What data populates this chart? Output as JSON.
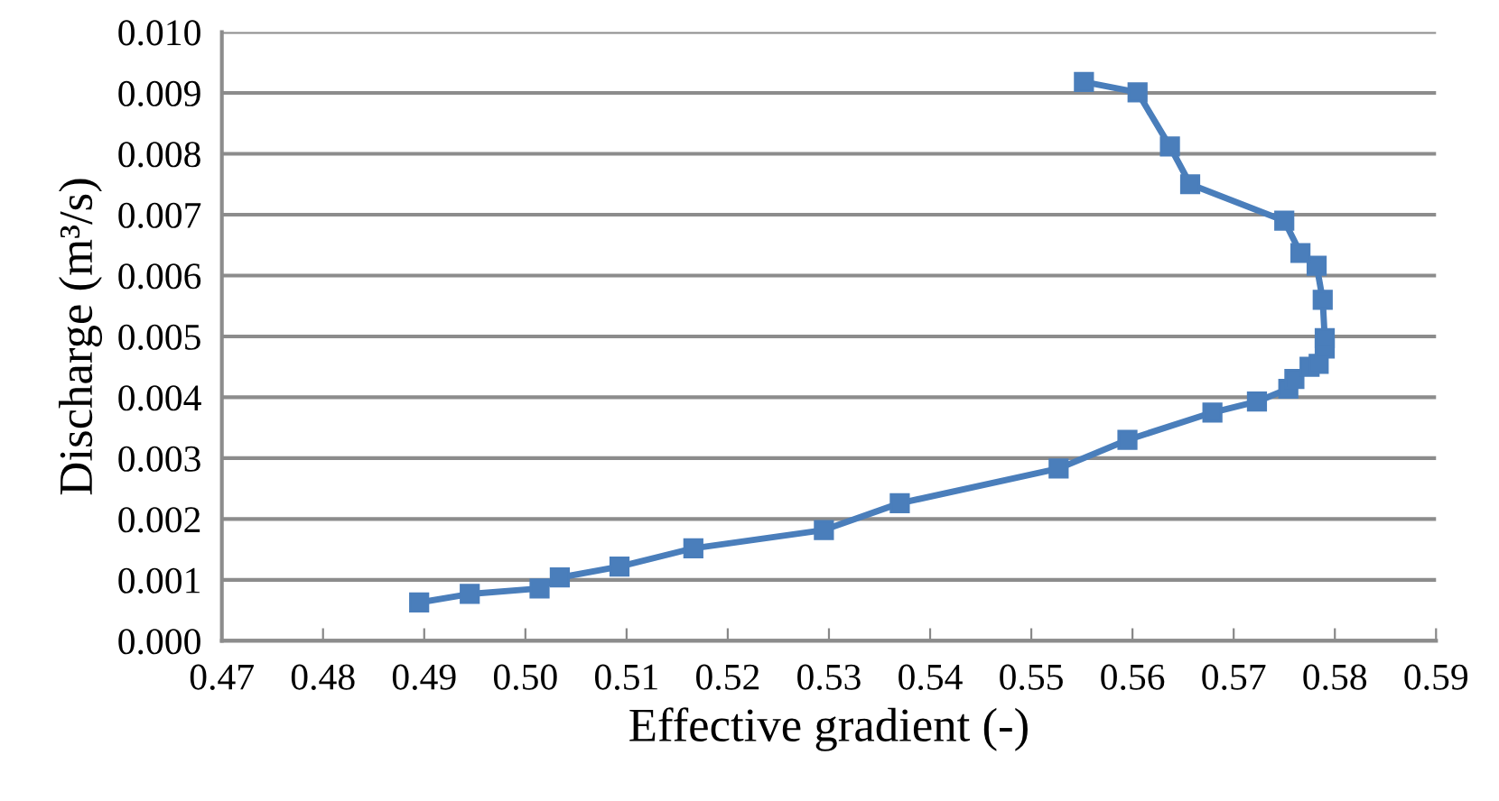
{
  "chart_data": {
    "type": "line",
    "xlabel": "Effective gradient (-)",
    "ylabel": "Discharge (m³/s)",
    "series": [
      {
        "color": "#4a7ebb",
        "x": [
          0.4895,
          0.4945,
          0.5014,
          0.5034,
          0.5093,
          0.5166,
          0.5295,
          0.537,
          0.5527,
          0.5595,
          0.5679,
          0.5723,
          0.5754,
          0.576,
          0.5775,
          0.5784,
          0.579,
          0.579,
          0.5788,
          0.5782,
          0.5766,
          0.575,
          0.5657,
          0.5637,
          0.5605,
          0.5552
        ],
        "values": [
          0.00063,
          0.00077,
          0.00086,
          0.00104,
          0.00122,
          0.00152,
          0.00182,
          0.00226,
          0.00283,
          0.0033,
          0.00375,
          0.00393,
          0.00414,
          0.0043,
          0.0045,
          0.00455,
          0.0048,
          0.00497,
          0.0056,
          0.00616,
          0.00637,
          0.0069,
          0.0075,
          0.00812,
          0.00901,
          0.00918
        ]
      }
    ],
    "marker": "square",
    "line_style": "solid",
    "grid": "y",
    "xlim": [
      0.47,
      0.59
    ],
    "xticks": [
      {
        "value": 0.47,
        "label": "0.47"
      },
      {
        "value": 0.48,
        "label": "0.48"
      },
      {
        "value": 0.49,
        "label": "0.49"
      },
      {
        "value": 0.5,
        "label": "0.50"
      },
      {
        "value": 0.51,
        "label": "0.51"
      },
      {
        "value": 0.52,
        "label": "0.52"
      },
      {
        "value": 0.53,
        "label": "0.53"
      },
      {
        "value": 0.54,
        "label": "0.54"
      },
      {
        "value": 0.55,
        "label": "0.55"
      },
      {
        "value": 0.56,
        "label": "0.56"
      },
      {
        "value": 0.57,
        "label": "0.57"
      },
      {
        "value": 0.58,
        "label": "0.58"
      },
      {
        "value": 0.59,
        "label": "0.59"
      }
    ],
    "ylim": [
      0,
      0.01
    ],
    "yticks": [
      {
        "value": 0,
        "label": "0.000"
      },
      {
        "value": 0.001,
        "label": "0.001"
      },
      {
        "value": 0.002,
        "label": "0.002"
      },
      {
        "value": 0.003,
        "label": "0.003"
      },
      {
        "value": 0.004,
        "label": "0.004"
      },
      {
        "value": 0.005,
        "label": "0.005"
      },
      {
        "value": 0.006,
        "label": "0.006"
      },
      {
        "value": 0.007,
        "label": "0.007"
      },
      {
        "value": 0.008,
        "label": "0.008"
      },
      {
        "value": 0.009,
        "label": "0.009"
      },
      {
        "value": 0.01,
        "label": "0.010"
      }
    ]
  }
}
